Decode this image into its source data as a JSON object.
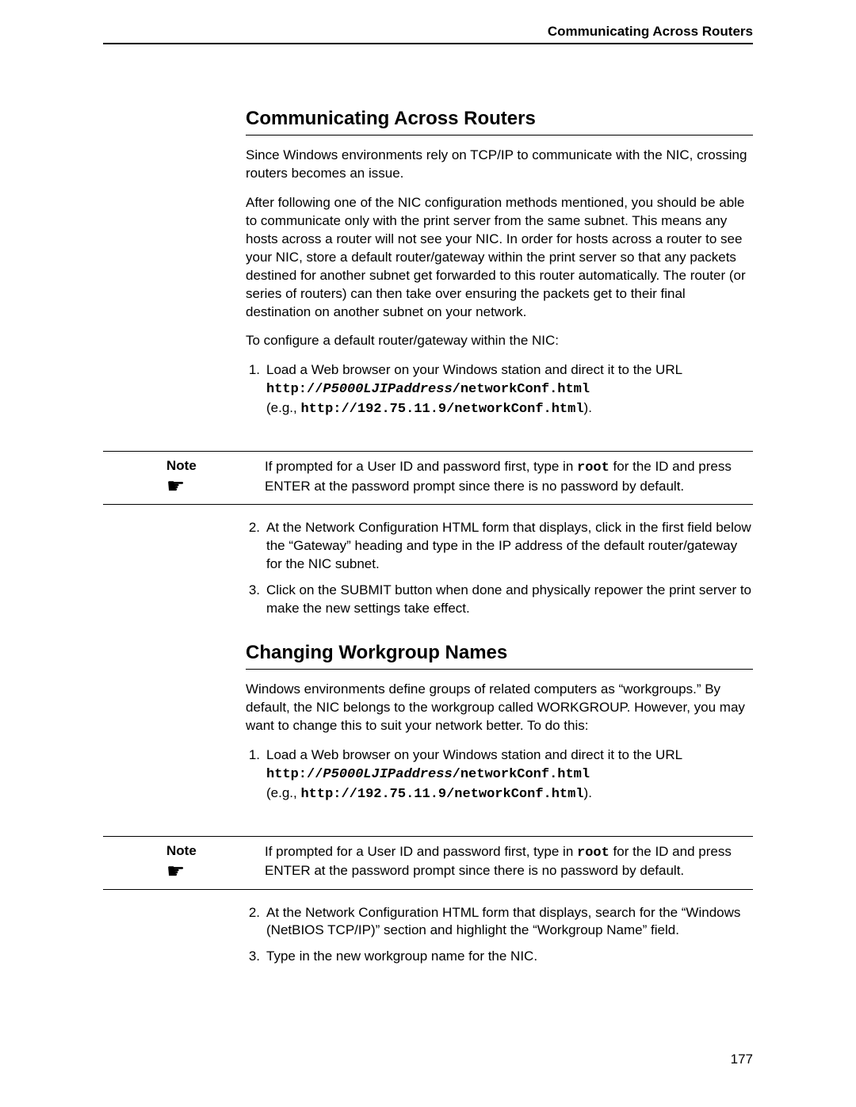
{
  "header": {
    "running_title": "Communicating Across Routers"
  },
  "section1": {
    "title": "Communicating Across Routers",
    "p1": "Since Windows environments rely on TCP/IP to communicate with the NIC, crossing routers becomes an issue.",
    "p2": "After following one of the NIC configuration methods mentioned, you should be able to communicate only with the print server from the same subnet. This means any hosts across a router will not see your NIC. In order for hosts across a router to see your NIC, store a default router/gateway within the print server so that any packets destined for another subnet get forwarded to this router automatically. The router (or series of routers) can then take over ensuring the packets get to their final destination on another subnet on your network.",
    "p3": "To configure a default router/gateway within the NIC:",
    "step1_lead": "Load a Web browser on your Windows station and direct it to the URL ",
    "step1_url_pre": "http://",
    "step1_url_var": "P5000LJIPaddress",
    "step1_url_post": "/networkConf.html",
    "step1_eg_pre": "(e.g., ",
    "step1_eg_url": "http://192.75.11.9/networkConf.html",
    "step1_eg_post": ").",
    "note_label": "Note",
    "note_body_pre": "If prompted for a User ID and password first, type in ",
    "note_body_root": "root",
    "note_body_post": " for the ID and press ENTER at the password prompt since there is no password by default.",
    "step2": "At the Network Configuration HTML form that displays, click in the first field below the “Gateway” heading and type in the IP address of the default router/gateway for the NIC subnet.",
    "step3": "Click on the SUBMIT button when done and physically repower the print server to make the new settings take effect."
  },
  "section2": {
    "title": "Changing Workgroup Names",
    "p1": "Windows environments define groups of related computers as “workgroups.” By default, the NIC belongs to the workgroup called WORKGROUP. However, you may want to change this to suit your network better. To do this:",
    "step1_lead": "Load a Web browser on your Windows station and direct it to the URL ",
    "step1_url_pre": "http://",
    "step1_url_var": "P5000LJIPaddress",
    "step1_url_post": "/networkConf.html",
    "step1_eg_pre": "(e.g., ",
    "step1_eg_url": "http://192.75.11.9/networkConf.html",
    "step1_eg_post": ").",
    "note_label": "Note",
    "note_body_pre": "If prompted for a User ID and password first, type in ",
    "note_body_root": "root",
    "note_body_post": " for the ID and press ENTER at the password prompt since there is no password by default.",
    "step2": "At the Network Configuration HTML form that displays, search for the “Windows (NetBIOS TCP/IP)” section and highlight the “Workgroup Name” field.",
    "step3": "Type in the new workgroup name for the NIC."
  },
  "page_number": "177",
  "icons": {
    "point_hand": "☛"
  }
}
